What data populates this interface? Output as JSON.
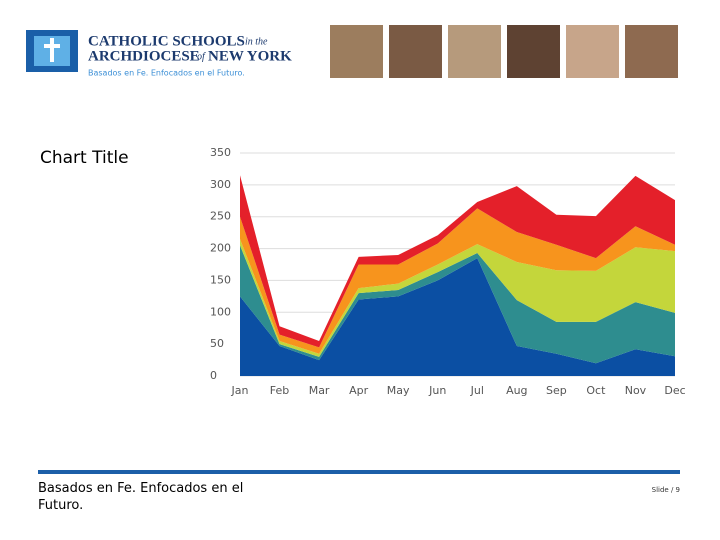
{
  "header": {
    "line1": "CATHOLIC SCHOOLS",
    "line1_small": "in the",
    "line2": "ARCHDIOCESE",
    "line2_small": "of",
    "line2_end": "NEW YORK",
    "tagline": "Basados en Fe. Enfocados en el Futuro."
  },
  "chart_data": {
    "type": "area",
    "stacked": true,
    "title": "Chart Title",
    "categories": [
      "Jan",
      "Feb",
      "Mar",
      "Apr",
      "May",
      "Jun",
      "Jul",
      "Aug",
      "Sep",
      "Oct",
      "Nov",
      "Dec"
    ],
    "series": [
      {
        "color": "#0b4fa3",
        "values": [
          125,
          47,
          25,
          120,
          125,
          150,
          185,
          47,
          35,
          20,
          42,
          31
        ]
      },
      {
        "color": "#2e8d8f",
        "values": [
          80,
          3,
          5,
          10,
          10,
          13,
          8,
          72,
          50,
          65,
          74,
          68
        ]
      },
      {
        "color": "#c4d63b",
        "values": [
          10,
          5,
          5,
          8,
          10,
          12,
          14,
          60,
          81,
          80,
          86,
          97
        ]
      },
      {
        "color": "#f7941d",
        "values": [
          35,
          10,
          10,
          37,
          30,
          33,
          56,
          47,
          40,
          20,
          33,
          10
        ]
      },
      {
        "color": "#e4202a",
        "values": [
          65,
          13,
          10,
          12,
          15,
          13,
          10,
          72,
          47,
          66,
          79,
          70
        ]
      }
    ],
    "ylim": [
      0,
      350
    ],
    "yticks": [
      0,
      50,
      100,
      150,
      200,
      250,
      300,
      350
    ],
    "grid": true
  },
  "footer": {
    "tagline": "Basados en Fe. Enfocados en el Futuro.",
    "slide": "Slide / 9"
  }
}
